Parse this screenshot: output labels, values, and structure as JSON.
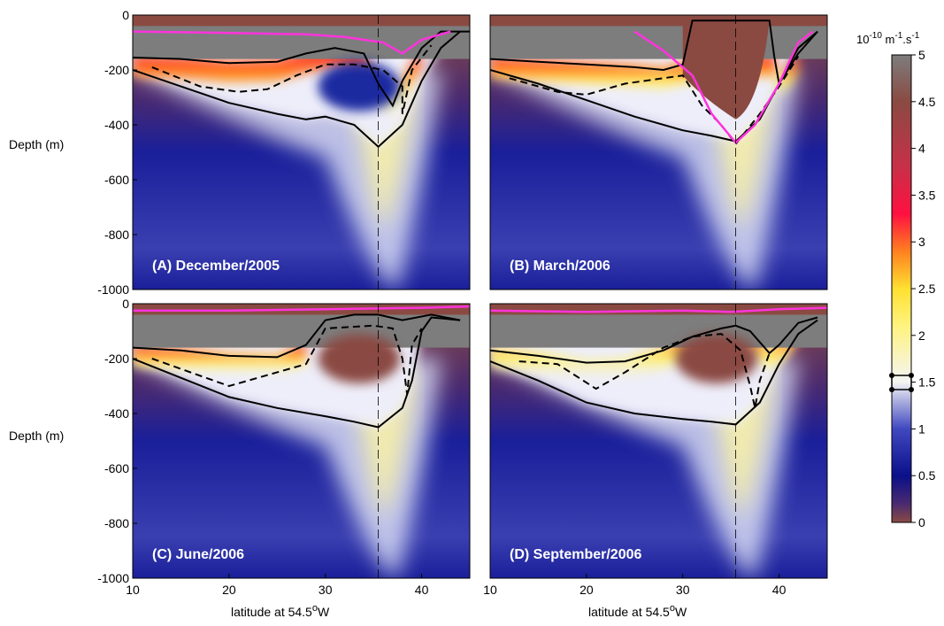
{
  "colors": {
    "brown": "#8a4a42",
    "navy": "#0a0f8a",
    "blue": "#4048c0",
    "white": "#f4f4f4",
    "yellow": "#fff060",
    "orange": "#ff8020",
    "red": "#ff1040",
    "grey": "#7d7d7d",
    "magenta": "#ff33dd",
    "line": "#000000"
  },
  "colorbar": {
    "units": "10",
    "units_exp": "-10",
    "units_rest": " m",
    "units_exp2": "-1",
    "units_rest2": ".s",
    "units_exp3": "-1",
    "range": [
      0,
      5
    ],
    "ticks": [
      "5",
      "4.5",
      "4",
      "3.5",
      "3",
      "2.5",
      "2",
      "1.5",
      "1",
      "0.5",
      "0"
    ],
    "tick_values": [
      5,
      4.5,
      4,
      3.5,
      3,
      2.5,
      2,
      1.5,
      1,
      0.5,
      0
    ]
  },
  "y_axis_label": "Depth (m)",
  "x_axis_label": "latitude at 54.5",
  "x_axis_label_deg": "o",
  "x_axis_label_end": "W",
  "chart_data": [
    {
      "type": "heatmap",
      "panel": "A",
      "title": "(A) December/2005",
      "xlabel": "",
      "ylabel": "Depth (m)",
      "xlim": [
        10,
        45
      ],
      "ylim": [
        -1000,
        0
      ],
      "yticks": [
        "0",
        "-200",
        "-400",
        "-600",
        "-800",
        "-1000"
      ],
      "xticks": [],
      "reference_latitude": 35.5,
      "mixed_layer_depth": [
        [
          10,
          -160
        ],
        [
          15,
          -165
        ],
        [
          20,
          -175
        ],
        [
          25,
          -180
        ],
        [
          30,
          -150
        ],
        [
          33,
          -120
        ],
        [
          36,
          -110
        ],
        [
          38,
          -150
        ],
        [
          40,
          -120
        ],
        [
          42,
          -60
        ],
        [
          45,
          -40
        ]
      ],
      "isoline_solid_upper": [
        [
          10,
          -155
        ],
        [
          15,
          -160
        ],
        [
          20,
          -175
        ],
        [
          25,
          -170
        ],
        [
          28,
          -140
        ],
        [
          31,
          -120
        ],
        [
          34,
          -140
        ],
        [
          35.5,
          -250
        ],
        [
          37,
          -330
        ],
        [
          38,
          -240
        ],
        [
          40,
          -120
        ],
        [
          42,
          -60
        ],
        [
          45,
          -60
        ]
      ],
      "isoline_dashed": [
        [
          12,
          -190
        ],
        [
          17,
          -260
        ],
        [
          21,
          -280
        ],
        [
          24,
          -270
        ],
        [
          27,
          -220
        ],
        [
          30,
          -180
        ],
        [
          33,
          -180
        ],
        [
          36,
          -200
        ],
        [
          38,
          -260
        ],
        [
          38,
          -360
        ],
        [
          39,
          -200
        ],
        [
          41,
          -110
        ]
      ],
      "isoline_solid_lower": [
        [
          10,
          -200
        ],
        [
          15,
          -260
        ],
        [
          20,
          -320
        ],
        [
          25,
          -360
        ],
        [
          28,
          -380
        ],
        [
          30,
          -370
        ],
        [
          33,
          -400
        ],
        [
          35.5,
          -480
        ],
        [
          38,
          -400
        ],
        [
          40,
          -240
        ],
        [
          42,
          -120
        ],
        [
          44,
          -60
        ]
      ],
      "magenta_line": [
        [
          10,
          -60
        ],
        [
          20,
          -65
        ],
        [
          28,
          -70
        ],
        [
          32,
          -80
        ],
        [
          36,
          -100
        ],
        [
          38,
          -140
        ],
        [
          40,
          -90
        ],
        [
          43,
          -60
        ]
      ]
    },
    {
      "type": "heatmap",
      "panel": "B",
      "title": "(B) March/2006",
      "xlabel": "",
      "ylabel": "",
      "xlim": [
        10,
        45
      ],
      "ylim": [
        -1000,
        0
      ],
      "yticks": [],
      "xticks": [],
      "reference_latitude": 35.5,
      "isoline_solid_upper": [
        [
          10,
          -160
        ],
        [
          15,
          -170
        ],
        [
          20,
          -180
        ],
        [
          25,
          -190
        ],
        [
          28,
          -200
        ],
        [
          30,
          -180
        ],
        [
          31,
          -20
        ],
        [
          39,
          -20
        ],
        [
          39.5,
          -150
        ],
        [
          40,
          -250
        ],
        [
          42,
          -140
        ],
        [
          44,
          -60
        ]
      ],
      "isoline_dashed": [
        [
          12,
          -230
        ],
        [
          17,
          -280
        ],
        [
          20,
          -290
        ],
        [
          24,
          -250
        ],
        [
          28,
          -230
        ],
        [
          30,
          -220
        ],
        [
          32,
          -330
        ],
        [
          34,
          -400
        ],
        [
          35.5,
          -470
        ],
        [
          38,
          -360
        ],
        [
          40,
          -260
        ],
        [
          42,
          -150
        ]
      ],
      "isoline_solid_lower": [
        [
          10,
          -200
        ],
        [
          15,
          -250
        ],
        [
          20,
          -310
        ],
        [
          25,
          -370
        ],
        [
          30,
          -420
        ],
        [
          33,
          -440
        ],
        [
          35.5,
          -460
        ],
        [
          38,
          -380
        ],
        [
          40,
          -250
        ],
        [
          42,
          -120
        ],
        [
          44,
          -60
        ]
      ],
      "magenta_line": [
        [
          25,
          -60
        ],
        [
          28,
          -130
        ],
        [
          31,
          -220
        ],
        [
          33,
          -360
        ],
        [
          35.5,
          -465
        ],
        [
          37.5,
          -400
        ],
        [
          40,
          -250
        ],
        [
          42,
          -100
        ],
        [
          43.5,
          -60
        ]
      ]
    },
    {
      "type": "heatmap",
      "panel": "C",
      "title": "(C) June/2006",
      "xlabel": "latitude at 54.5°W",
      "ylabel": "Depth (m)",
      "xlim": [
        10,
        45
      ],
      "ylim": [
        -1000,
        0
      ],
      "yticks": [
        "0",
        "-200",
        "-400",
        "-600",
        "-800",
        "-1000"
      ],
      "xticks": [
        "10",
        "20",
        "30",
        "40"
      ],
      "reference_latitude": 35.5,
      "isoline_solid_upper": [
        [
          10,
          -160
        ],
        [
          15,
          -170
        ],
        [
          20,
          -190
        ],
        [
          25,
          -195
        ],
        [
          28,
          -150
        ],
        [
          30,
          -60
        ],
        [
          33,
          -40
        ],
        [
          35.5,
          -40
        ],
        [
          38,
          -60
        ],
        [
          41,
          -40
        ],
        [
          44,
          -60
        ]
      ],
      "isoline_dashed": [
        [
          12,
          -200
        ],
        [
          16,
          -250
        ],
        [
          20,
          -300
        ],
        [
          24,
          -260
        ],
        [
          28,
          -220
        ],
        [
          30,
          -90
        ],
        [
          35,
          -80
        ],
        [
          37,
          -90
        ],
        [
          38,
          -200
        ],
        [
          38.5,
          -330
        ],
        [
          39,
          -150
        ],
        [
          40,
          -90
        ]
      ],
      "isoline_solid_lower": [
        [
          10,
          -200
        ],
        [
          15,
          -270
        ],
        [
          20,
          -340
        ],
        [
          25,
          -380
        ],
        [
          30,
          -410
        ],
        [
          33,
          -430
        ],
        [
          35.5,
          -450
        ],
        [
          38,
          -380
        ],
        [
          39,
          -280
        ],
        [
          40,
          -100
        ],
        [
          41,
          -50
        ],
        [
          44,
          -60
        ]
      ],
      "magenta_line": [
        [
          10,
          -25
        ],
        [
          20,
          -25
        ],
        [
          30,
          -20
        ],
        [
          40,
          -15
        ],
        [
          45,
          -10
        ]
      ]
    },
    {
      "type": "heatmap",
      "panel": "D",
      "title": "(D) September/2006",
      "xlabel": "latitude at 54.5°W",
      "ylabel": "",
      "xlim": [
        10,
        45
      ],
      "ylim": [
        -1000,
        0
      ],
      "yticks": [],
      "xticks": [
        "10",
        "20",
        "30",
        "40"
      ],
      "reference_latitude": 35.5,
      "isoline_solid_upper": [
        [
          10,
          -170
        ],
        [
          15,
          -190
        ],
        [
          20,
          -215
        ],
        [
          24,
          -210
        ],
        [
          28,
          -170
        ],
        [
          31,
          -120
        ],
        [
          34,
          -90
        ],
        [
          35.5,
          -80
        ],
        [
          37,
          -100
        ],
        [
          39,
          -180
        ],
        [
          40,
          -150
        ],
        [
          42,
          -70
        ],
        [
          44,
          -50
        ]
      ],
      "isoline_dashed": [
        [
          13,
          -210
        ],
        [
          17,
          -220
        ],
        [
          21,
          -310
        ],
        [
          24,
          -250
        ],
        [
          28,
          -160
        ],
        [
          31,
          -120
        ],
        [
          34,
          -110
        ],
        [
          36,
          -170
        ],
        [
          37,
          -300
        ],
        [
          37.5,
          -380
        ],
        [
          38,
          -280
        ],
        [
          39,
          -180
        ]
      ],
      "isoline_solid_lower": [
        [
          10,
          -210
        ],
        [
          15,
          -280
        ],
        [
          20,
          -360
        ],
        [
          25,
          -400
        ],
        [
          30,
          -420
        ],
        [
          33,
          -430
        ],
        [
          35.5,
          -440
        ],
        [
          38,
          -360
        ],
        [
          40,
          -220
        ],
        [
          42,
          -110
        ],
        [
          44,
          -60
        ]
      ],
      "magenta_line": [
        [
          10,
          -25
        ],
        [
          20,
          -30
        ],
        [
          30,
          -25
        ],
        [
          35,
          -30
        ],
        [
          40,
          -20
        ],
        [
          45,
          -15
        ]
      ]
    }
  ]
}
